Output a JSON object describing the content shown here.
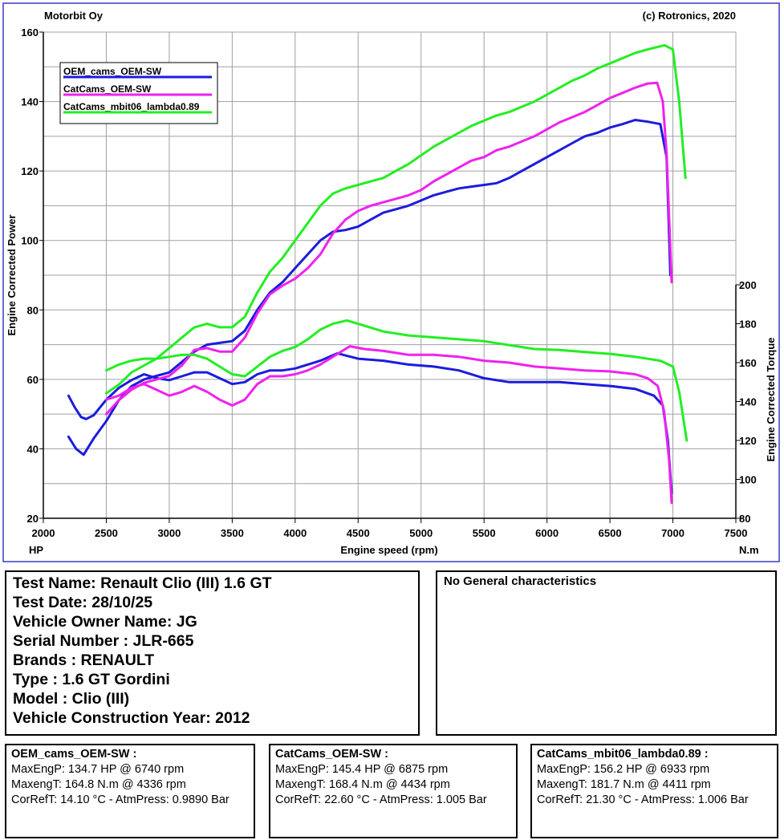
{
  "header": {
    "left": "Motorbit Oy",
    "right": "(c) Rotronics, 2020"
  },
  "chart_data": {
    "type": "line",
    "title": "",
    "xlabel": "Engine speed (rpm)",
    "ylabel": "Engine Corrected Power",
    "y2label": "Engine Corrected Torque",
    "x_unit": "HP",
    "y2_unit": "N.m",
    "xlim": [
      2000,
      7500
    ],
    "ylim": [
      20,
      160
    ],
    "y2lim": [
      80,
      200
    ],
    "x_ticks": [
      "2000",
      "2500",
      "3000",
      "3500",
      "4000",
      "4500",
      "5000",
      "5500",
      "6000",
      "6500",
      "7000",
      "7500"
    ],
    "y_ticks": [
      "20",
      "40",
      "60",
      "80",
      "100",
      "120",
      "140",
      "160"
    ],
    "y2_ticks": [
      "80",
      "100",
      "120",
      "140",
      "160",
      "180",
      "200"
    ],
    "grid": true,
    "legend_position": "top-left",
    "series": [
      {
        "name": "OEM_cams_OEM-SW",
        "color": "#1c1cdc",
        "power": [
          [
            2200,
            43.5
          ],
          [
            2260,
            40
          ],
          [
            2320,
            38.3
          ],
          [
            2400,
            43
          ],
          [
            2500,
            48
          ],
          [
            2600,
            54
          ],
          [
            2700,
            58
          ],
          [
            2800,
            60
          ],
          [
            2900,
            61
          ],
          [
            3000,
            62
          ],
          [
            3100,
            65
          ],
          [
            3200,
            68
          ],
          [
            3300,
            70
          ],
          [
            3400,
            70.5
          ],
          [
            3500,
            71
          ],
          [
            3600,
            74
          ],
          [
            3700,
            80
          ],
          [
            3800,
            85
          ],
          [
            3900,
            88
          ],
          [
            4000,
            92
          ],
          [
            4100,
            96
          ],
          [
            4200,
            100
          ],
          [
            4300,
            102.5
          ],
          [
            4400,
            103
          ],
          [
            4500,
            104
          ],
          [
            4600,
            106
          ],
          [
            4700,
            108
          ],
          [
            4800,
            109
          ],
          [
            4900,
            110
          ],
          [
            5000,
            111.5
          ],
          [
            5100,
            113
          ],
          [
            5200,
            114
          ],
          [
            5300,
            115
          ],
          [
            5400,
            115.5
          ],
          [
            5500,
            116
          ],
          [
            5600,
            116.5
          ],
          [
            5700,
            118
          ],
          [
            5800,
            120
          ],
          [
            5900,
            122
          ],
          [
            6000,
            124
          ],
          [
            6100,
            126
          ],
          [
            6200,
            128
          ],
          [
            6300,
            130
          ],
          [
            6400,
            131
          ],
          [
            6500,
            132.5
          ],
          [
            6600,
            133.5
          ],
          [
            6700,
            134.7
          ],
          [
            6800,
            134.2
          ],
          [
            6900,
            133.5
          ],
          [
            6950,
            124
          ],
          [
            6980,
            90
          ]
        ],
        "torque": [
          [
            2200,
            143
          ],
          [
            2250,
            137
          ],
          [
            2300,
            132
          ],
          [
            2340,
            131
          ],
          [
            2400,
            133
          ],
          [
            2500,
            141
          ],
          [
            2600,
            147
          ],
          [
            2700,
            151
          ],
          [
            2800,
            154
          ],
          [
            2900,
            152
          ],
          [
            3000,
            151
          ],
          [
            3100,
            153
          ],
          [
            3200,
            155
          ],
          [
            3300,
            155
          ],
          [
            3400,
            152
          ],
          [
            3500,
            149
          ],
          [
            3600,
            150
          ],
          [
            3700,
            154
          ],
          [
            3800,
            156
          ],
          [
            3900,
            156
          ],
          [
            4000,
            157
          ],
          [
            4100,
            159
          ],
          [
            4200,
            161
          ],
          [
            4336,
            164.8
          ],
          [
            4500,
            162
          ],
          [
            4700,
            161
          ],
          [
            4900,
            159
          ],
          [
            5100,
            158
          ],
          [
            5300,
            156
          ],
          [
            5500,
            152
          ],
          [
            5700,
            150
          ],
          [
            5900,
            150
          ],
          [
            6100,
            150
          ],
          [
            6300,
            149
          ],
          [
            6500,
            148
          ],
          [
            6700,
            146.5
          ],
          [
            6850,
            143
          ],
          [
            6920,
            138
          ],
          [
            6960,
            120
          ],
          [
            6990,
            93
          ]
        ]
      },
      {
        "name": "CatCams_OEM-SW",
        "color": "#ee22ee",
        "power": [
          [
            2500,
            50
          ],
          [
            2600,
            54
          ],
          [
            2700,
            57
          ],
          [
            2800,
            59
          ],
          [
            2900,
            60
          ],
          [
            3000,
            61
          ],
          [
            3100,
            64
          ],
          [
            3200,
            68.5
          ],
          [
            3300,
            69
          ],
          [
            3400,
            68
          ],
          [
            3500,
            68
          ],
          [
            3600,
            72
          ],
          [
            3700,
            79
          ],
          [
            3800,
            84.5
          ],
          [
            3900,
            87
          ],
          [
            4000,
            89
          ],
          [
            4100,
            92
          ],
          [
            4200,
            96
          ],
          [
            4300,
            102
          ],
          [
            4400,
            106
          ],
          [
            4500,
            108.5
          ],
          [
            4600,
            110
          ],
          [
            4700,
            111
          ],
          [
            4800,
            112
          ],
          [
            4900,
            113
          ],
          [
            5000,
            114.5
          ],
          [
            5100,
            117
          ],
          [
            5200,
            119
          ],
          [
            5300,
            121
          ],
          [
            5400,
            123
          ],
          [
            5500,
            124
          ],
          [
            5600,
            126
          ],
          [
            5700,
            127
          ],
          [
            5800,
            128.5
          ],
          [
            5900,
            130
          ],
          [
            6000,
            132
          ],
          [
            6100,
            134
          ],
          [
            6200,
            135.5
          ],
          [
            6300,
            137
          ],
          [
            6400,
            139
          ],
          [
            6500,
            141
          ],
          [
            6600,
            142.5
          ],
          [
            6700,
            144
          ],
          [
            6800,
            145.2
          ],
          [
            6875,
            145.4
          ],
          [
            6920,
            140
          ],
          [
            6950,
            125
          ],
          [
            6990,
            88
          ]
        ],
        "torque": [
          [
            2500,
            141
          ],
          [
            2600,
            143
          ],
          [
            2700,
            147
          ],
          [
            2800,
            149
          ],
          [
            2900,
            146
          ],
          [
            3000,
            143
          ],
          [
            3100,
            145
          ],
          [
            3200,
            148
          ],
          [
            3300,
            145
          ],
          [
            3400,
            141
          ],
          [
            3500,
            138
          ],
          [
            3600,
            141
          ],
          [
            3700,
            149
          ],
          [
            3800,
            153
          ],
          [
            3900,
            153
          ],
          [
            4000,
            154
          ],
          [
            4100,
            156
          ],
          [
            4200,
            159
          ],
          [
            4300,
            163
          ],
          [
            4434,
            168.4
          ],
          [
            4550,
            167
          ],
          [
            4700,
            166
          ],
          [
            4900,
            164
          ],
          [
            5100,
            164
          ],
          [
            5300,
            163
          ],
          [
            5500,
            161
          ],
          [
            5700,
            160
          ],
          [
            5900,
            158
          ],
          [
            6100,
            157
          ],
          [
            6300,
            156
          ],
          [
            6500,
            155.5
          ],
          [
            6700,
            154
          ],
          [
            6800,
            152
          ],
          [
            6880,
            148
          ],
          [
            6930,
            135
          ],
          [
            6970,
            110
          ],
          [
            6990,
            88
          ]
        ]
      },
      {
        "name": "CatCams_mbit06_lambda0.89",
        "color": "#22ee22",
        "power": [
          [
            2500,
            56
          ],
          [
            2600,
            58.5
          ],
          [
            2700,
            62
          ],
          [
            2800,
            64
          ],
          [
            2900,
            66
          ],
          [
            3000,
            69
          ],
          [
            3100,
            72
          ],
          [
            3200,
            75
          ],
          [
            3300,
            76
          ],
          [
            3400,
            75
          ],
          [
            3500,
            75
          ],
          [
            3600,
            78
          ],
          [
            3700,
            85
          ],
          [
            3800,
            91
          ],
          [
            3900,
            95
          ],
          [
            4000,
            100
          ],
          [
            4100,
            105
          ],
          [
            4200,
            110
          ],
          [
            4300,
            113.5
          ],
          [
            4400,
            115
          ],
          [
            4500,
            116
          ],
          [
            4600,
            117
          ],
          [
            4700,
            118
          ],
          [
            4800,
            120
          ],
          [
            4900,
            122
          ],
          [
            5000,
            124.5
          ],
          [
            5100,
            127
          ],
          [
            5200,
            129
          ],
          [
            5300,
            131
          ],
          [
            5400,
            133
          ],
          [
            5500,
            134.5
          ],
          [
            5600,
            136
          ],
          [
            5700,
            137
          ],
          [
            5800,
            138.5
          ],
          [
            5900,
            140
          ],
          [
            6000,
            142
          ],
          [
            6100,
            144
          ],
          [
            6200,
            146
          ],
          [
            6300,
            147.5
          ],
          [
            6400,
            149.5
          ],
          [
            6500,
            151
          ],
          [
            6600,
            152.5
          ],
          [
            6700,
            154
          ],
          [
            6800,
            155
          ],
          [
            6933,
            156.2
          ],
          [
            7000,
            155
          ],
          [
            7050,
            140
          ],
          [
            7100,
            118
          ]
        ],
        "torque": [
          [
            2500,
            156
          ],
          [
            2600,
            159
          ],
          [
            2700,
            161
          ],
          [
            2800,
            162
          ],
          [
            2900,
            162
          ],
          [
            3000,
            163
          ],
          [
            3100,
            164
          ],
          [
            3200,
            164
          ],
          [
            3300,
            162
          ],
          [
            3400,
            158
          ],
          [
            3500,
            154
          ],
          [
            3600,
            153
          ],
          [
            3700,
            158
          ],
          [
            3800,
            163
          ],
          [
            3900,
            166
          ],
          [
            4000,
            168
          ],
          [
            4100,
            172
          ],
          [
            4200,
            177
          ],
          [
            4300,
            180
          ],
          [
            4411,
            181.7
          ],
          [
            4550,
            179
          ],
          [
            4700,
            176
          ],
          [
            4900,
            174
          ],
          [
            5100,
            173
          ],
          [
            5300,
            172
          ],
          [
            5500,
            171
          ],
          [
            5700,
            169
          ],
          [
            5900,
            167
          ],
          [
            6100,
            166.5
          ],
          [
            6300,
            165.5
          ],
          [
            6500,
            164.5
          ],
          [
            6700,
            163
          ],
          [
            6900,
            161
          ],
          [
            7000,
            158
          ],
          [
            7050,
            145
          ],
          [
            7110,
            120
          ]
        ]
      }
    ]
  },
  "test_info": {
    "lines": [
      "Test Name: Renault Clio (III) 1.6 GT",
      "Test Date: 28/10/25",
      "Vehicle Owner Name: JG",
      "Serial Number  : JLR-665",
      "Brands  : RENAULT",
      "Type  : 1.6 GT Gordini",
      "Model  : Clio (III)",
      "Vehicle Construction Year: 2012"
    ]
  },
  "general": {
    "text": "No General characteristics"
  },
  "summaries": [
    {
      "title": "OEM_cams_OEM-SW :",
      "max_power": "MaxEngP: 134.7 HP @ 6740 rpm",
      "max_torque": "MaxengT: 164.8 N.m @ 4336 rpm",
      "conditions": "CorRefT: 14.10 °C - AtmPress: 0.9890 Bar"
    },
    {
      "title": "CatCams_OEM-SW :",
      "max_power": "MaxEngP: 145.4 HP @ 6875 rpm",
      "max_torque": "MaxengT: 168.4 N.m @ 4434 rpm",
      "conditions": "CorRefT: 22.60 °C - AtmPress: 1.005 Bar"
    },
    {
      "title": "CatCams_mbit06_lambda0.89 :",
      "max_power": "MaxEngP: 156.2 HP @ 6933 rpm",
      "max_torque": "MaxengT: 181.7 N.m @ 4411 rpm",
      "conditions": "CorRefT: 21.30 °C - AtmPress: 1.006 Bar"
    }
  ]
}
